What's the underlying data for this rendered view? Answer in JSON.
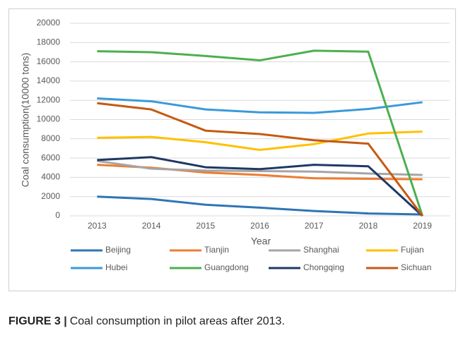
{
  "chart_data": {
    "type": "line",
    "caption_label": "FIGURE 3 |",
    "caption": "Coal consumption in pilot areas after 2013.",
    "x_label": "Year",
    "y_label": "Coal consumption(10000 tons)",
    "categories": [
      "2013",
      "2014",
      "2015",
      "2016",
      "2017",
      "2018",
      "2019"
    ],
    "ylim": [
      0,
      20000
    ],
    "yticks": [
      0,
      2000,
      4000,
      6000,
      8000,
      10000,
      12000,
      14000,
      16000,
      18000,
      20000
    ],
    "grid": true,
    "legend": "bottom",
    "series": [
      {
        "name": "Beijing",
        "color": "#2e75b6",
        "values": [
          2000,
          1750,
          1150,
          850,
          500,
          250,
          150
        ]
      },
      {
        "name": "Tianjin",
        "color": "#ed7d31",
        "values": [
          5300,
          5000,
          4500,
          4250,
          3900,
          3850,
          3800
        ]
      },
      {
        "name": "Shanghai",
        "color": "#a5a5a5",
        "values": [
          5700,
          4900,
          4700,
          4650,
          4600,
          4400,
          4250
        ]
      },
      {
        "name": "Fujian",
        "color": "#ffc000",
        "values": [
          8100,
          8200,
          7650,
          6850,
          7450,
          8550,
          8750
        ]
      },
      {
        "name": "Hubei",
        "color": "#3a9ad9",
        "values": [
          12200,
          11900,
          11050,
          10750,
          10700,
          11100,
          11800
        ]
      },
      {
        "name": "Guangdong",
        "color": "#4caf50",
        "values": [
          17100,
          17000,
          16600,
          16150,
          17150,
          17050,
          0
        ]
      },
      {
        "name": "Chongqing",
        "color": "#1f3864",
        "values": [
          5800,
          6100,
          5050,
          4850,
          5300,
          5150,
          0
        ]
      },
      {
        "name": "Sichuan",
        "color": "#c55a11",
        "values": [
          11700,
          11050,
          8850,
          8500,
          7850,
          7500,
          0
        ]
      }
    ]
  }
}
